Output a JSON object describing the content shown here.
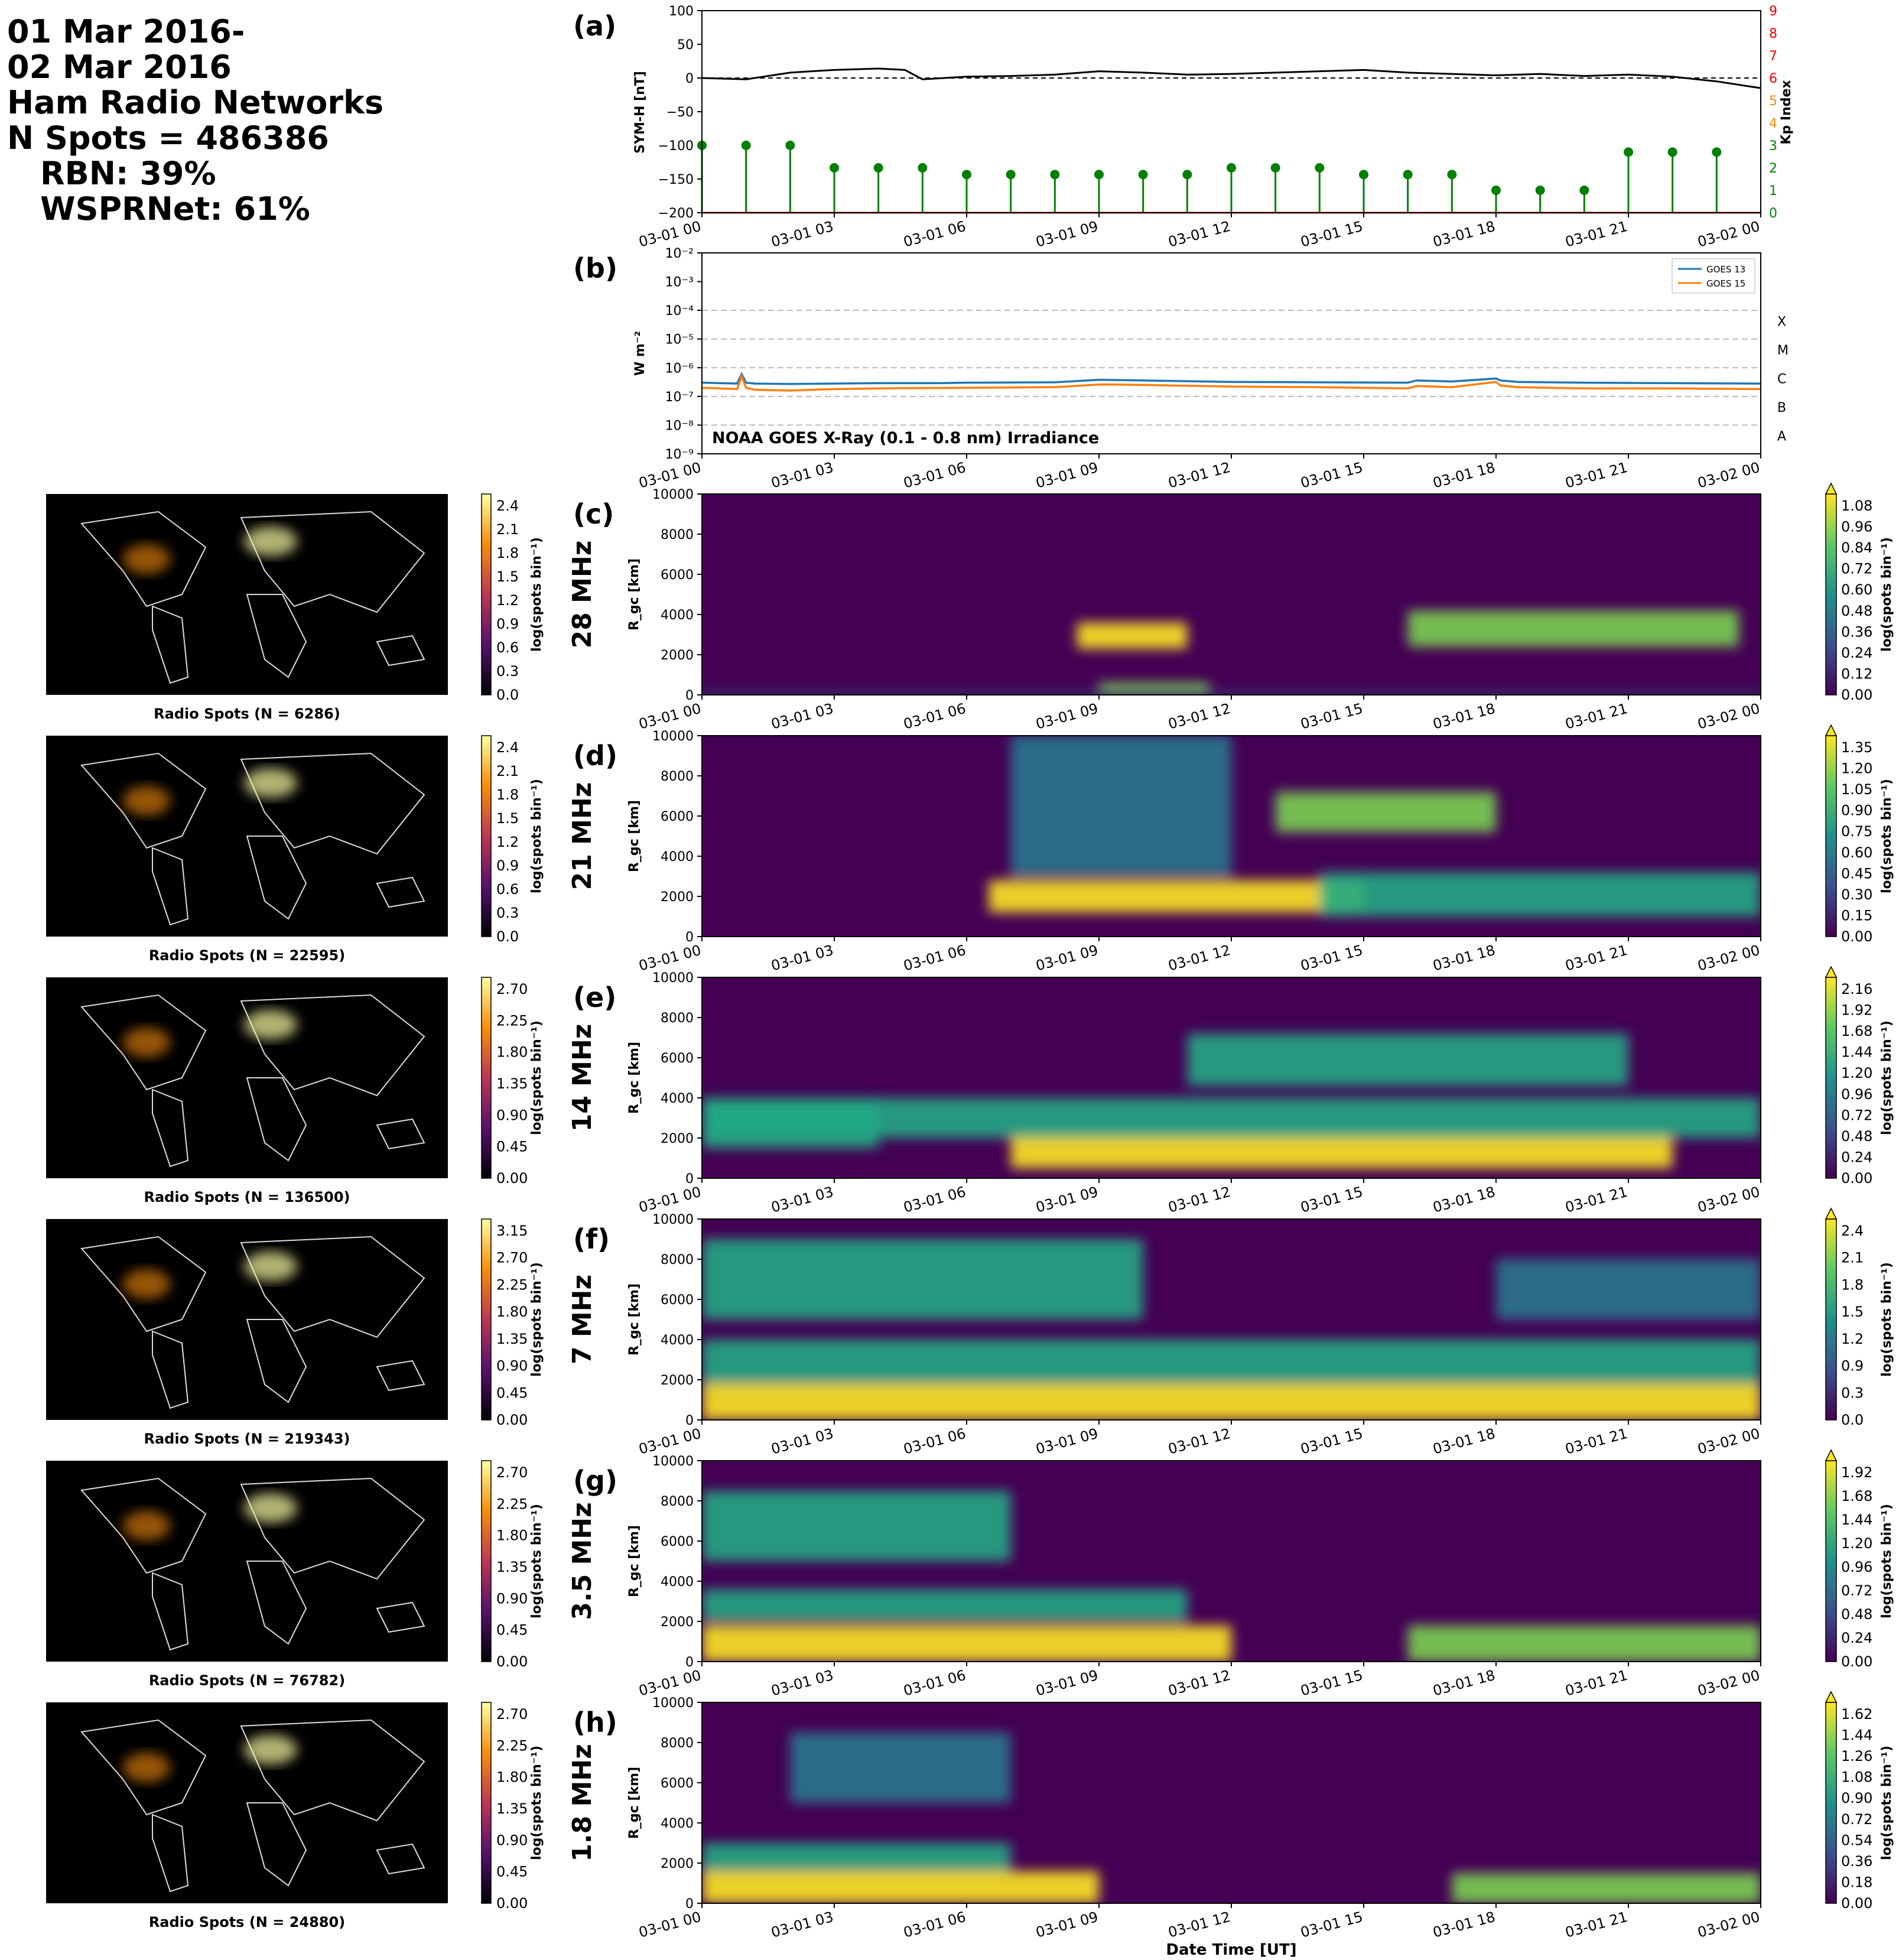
{
  "header": {
    "line1": "01 Mar 2016-",
    "line2": "02 Mar 2016",
    "line3": "Ham Radio Networks",
    "line4": "N Spots = 486386",
    "line5": "RBN: 39%",
    "line6": "WSPRNet: 61%"
  },
  "time_ticks": [
    "03-01 00",
    "03-01 03",
    "03-01 06",
    "03-01 09",
    "03-01 12",
    "03-01 15",
    "03-01 18",
    "03-01 21",
    "03-02 00"
  ],
  "xlabel_bottom": "Date Time [UT]",
  "colors": {
    "symh": "#000000",
    "kp": "#008000",
    "kp_axis": "#ff0000",
    "goes13": "#1f77b4",
    "goes15": "#ff7f0e"
  },
  "chart_data": [
    {
      "panel": "(a)",
      "type": "line",
      "ylabel": "SYM-H [nT]",
      "ylabel_right": "Kp Index",
      "ylim": [
        -200,
        100
      ],
      "yticks": [
        "100",
        "50",
        "0",
        "−50",
        "−100",
        "−150",
        "−200"
      ],
      "ylim_right": [
        0,
        9
      ],
      "yticks_right": [
        "9",
        "8",
        "7",
        "6",
        "5",
        "4",
        "3",
        "2",
        "1",
        "0"
      ],
      "symh": {
        "x_hours": [
          0,
          1,
          2,
          3,
          4,
          4.6,
          5,
          6,
          7,
          8,
          9,
          10,
          11,
          12,
          13,
          14,
          15,
          16,
          17,
          18,
          19,
          20,
          21,
          22,
          23,
          24
        ],
        "values": [
          0,
          -2,
          8,
          12,
          14,
          12,
          -2,
          2,
          3,
          5,
          10,
          8,
          5,
          6,
          8,
          10,
          12,
          8,
          6,
          4,
          6,
          3,
          5,
          2,
          -5,
          -15
        ]
      },
      "kp": {
        "x_hours": [
          0,
          1,
          2,
          3,
          4,
          5,
          6,
          7,
          8,
          9,
          10,
          11,
          12,
          13,
          14,
          15,
          16,
          17,
          18,
          19,
          20,
          21,
          22,
          23
        ],
        "values": [
          3,
          3,
          3,
          2,
          2,
          2,
          1.7,
          1.7,
          1.7,
          1.7,
          1.7,
          1.7,
          2,
          2,
          2,
          1.7,
          1.7,
          1.7,
          1,
          1,
          1,
          2.7,
          2.7,
          2.7
        ]
      }
    },
    {
      "panel": "(b)",
      "type": "line",
      "scale": "log",
      "ylabel": "W m⁻²",
      "ylim": [
        1e-09,
        0.01
      ],
      "yticks": [
        "10⁻²",
        "10⁻³",
        "10⁻⁴",
        "10⁻⁵",
        "10⁻⁶",
        "10⁻⁷",
        "10⁻⁸",
        "10⁻⁹"
      ],
      "class_labels": [
        "X",
        "M",
        "C",
        "B",
        "A"
      ],
      "annotation": "NOAA GOES X-Ray (0.1 - 0.8 nm) Irradiance",
      "legend_position": "top-right",
      "series": [
        {
          "name": "GOES 13",
          "x_hours": [
            0,
            0.8,
            0.9,
            1.0,
            1.2,
            2,
            3,
            4,
            4.8,
            5.4,
            6,
            8,
            9,
            10,
            12,
            14,
            16,
            16.2,
            17,
            18,
            18.1,
            18.5,
            20,
            22,
            24
          ],
          "values": [
            3e-07,
            2.8e-07,
            6e-07,
            3e-07,
            2.8e-07,
            2.7e-07,
            2.8e-07,
            2.9e-07,
            2.9e-07,
            2.9e-07,
            3e-07,
            3.1e-07,
            3.8e-07,
            3.6e-07,
            3.2e-07,
            3.1e-07,
            3e-07,
            3.6e-07,
            3.3e-07,
            4.2e-07,
            3.6e-07,
            3.2e-07,
            3e-07,
            2.9e-07,
            2.8e-07
          ]
        },
        {
          "name": "GOES 15",
          "x_hours": [
            0,
            0.8,
            0.9,
            1.0,
            1.2,
            2,
            3,
            4,
            6,
            8,
            9,
            9.4,
            10,
            12,
            14,
            16,
            16.2,
            17,
            18,
            18.1,
            18.5,
            20,
            22,
            24
          ],
          "values": [
            2e-07,
            1.8e-07,
            5e-07,
            2e-07,
            1.7e-07,
            1.6e-07,
            1.8e-07,
            1.9e-07,
            2e-07,
            2.1e-07,
            2.6e-07,
            2.6e-07,
            2.5e-07,
            2.2e-07,
            2.1e-07,
            1.9e-07,
            2.3e-07,
            2.1e-07,
            3.2e-07,
            2.4e-07,
            2.1e-07,
            1.9e-07,
            1.9e-07,
            1.8e-07
          ]
        }
      ]
    },
    {
      "panel": "(c)",
      "band": "28 MHz",
      "type": "heatmap",
      "map_title": "Radio Spots (N = 6286)",
      "map_cbar_ticks": [
        "2.4",
        "2.1",
        "1.8",
        "1.5",
        "1.2",
        "0.9",
        "0.6",
        "0.3",
        "0.0"
      ],
      "cbar_ticks": [
        "1.08",
        "0.96",
        "0.84",
        "0.72",
        "0.60",
        "0.48",
        "0.36",
        "0.24",
        "0.12",
        "0.00"
      ],
      "vmax": 1.08,
      "blobs": [
        {
          "t": [
            9,
            11.5
          ],
          "r": [
            0,
            600
          ],
          "v": 0.9
        },
        {
          "t": [
            8.5,
            11
          ],
          "r": [
            2300,
            3600
          ],
          "v": 1.0
        },
        {
          "t": [
            16,
            23.5
          ],
          "r": [
            2400,
            4200
          ],
          "v": 0.9
        },
        {
          "t": [
            0,
            24
          ],
          "r": [
            0,
            150
          ],
          "v": 0.3
        }
      ]
    },
    {
      "panel": "(d)",
      "band": "21 MHz",
      "type": "heatmap",
      "map_title": "Radio Spots (N = 22595)",
      "map_cbar_ticks": [
        "2.4",
        "2.1",
        "1.8",
        "1.5",
        "1.2",
        "0.9",
        "0.6",
        "0.3",
        "0.0"
      ],
      "cbar_ticks": [
        "1.35",
        "1.20",
        "1.05",
        "0.90",
        "0.75",
        "0.60",
        "0.45",
        "0.30",
        "0.15",
        "0.00"
      ],
      "vmax": 1.35,
      "blobs": [
        {
          "t": [
            6.5,
            15
          ],
          "r": [
            1200,
            2800
          ],
          "v": 1.3
        },
        {
          "t": [
            13,
            18
          ],
          "r": [
            5200,
            7200
          ],
          "v": 1.1
        },
        {
          "t": [
            7,
            12
          ],
          "r": [
            3000,
            10000
          ],
          "v": 0.6
        },
        {
          "t": [
            14,
            24
          ],
          "r": [
            1000,
            3200
          ],
          "v": 0.7
        }
      ]
    },
    {
      "panel": "(e)",
      "band": "14 MHz",
      "type": "heatmap",
      "map_title": "Radio Spots (N = 136500)",
      "map_cbar_ticks": [
        "2.70",
        "2.25",
        "1.80",
        "1.35",
        "0.90",
        "0.45",
        "0.00"
      ],
      "cbar_ticks": [
        "2.16",
        "1.92",
        "1.68",
        "1.44",
        "1.20",
        "0.96",
        "0.72",
        "0.48",
        "0.24",
        "0.00"
      ],
      "vmax": 2.16,
      "blobs": [
        {
          "t": [
            7,
            22
          ],
          "r": [
            500,
            2200
          ],
          "v": 2.1
        },
        {
          "t": [
            11,
            21
          ],
          "r": [
            4600,
            7200
          ],
          "v": 1.4
        },
        {
          "t": [
            0,
            4
          ],
          "r": [
            1500,
            4000
          ],
          "v": 1.2
        },
        {
          "t": [
            0,
            24
          ],
          "r": [
            2000,
            4000
          ],
          "v": 1.0
        }
      ]
    },
    {
      "panel": "(f)",
      "band": "7 MHz",
      "type": "heatmap",
      "map_title": "Radio Spots (N = 219343)",
      "map_cbar_ticks": [
        "3.15",
        "2.70",
        "2.25",
        "1.80",
        "1.35",
        "0.90",
        "0.45",
        "0.00"
      ],
      "cbar_ticks": [
        "2.4",
        "2.1",
        "1.8",
        "1.5",
        "1.2",
        "0.9",
        "0.3",
        "0.0"
      ],
      "vmax": 2.4,
      "blobs": [
        {
          "t": [
            0,
            24
          ],
          "r": [
            0,
            1800
          ],
          "v": 2.2
        },
        {
          "t": [
            0,
            24
          ],
          "r": [
            1800,
            4000
          ],
          "v": 1.4
        },
        {
          "t": [
            0,
            10
          ],
          "r": [
            5000,
            9000
          ],
          "v": 1.1
        },
        {
          "t": [
            18,
            24
          ],
          "r": [
            5000,
            8000
          ],
          "v": 1.0
        }
      ]
    },
    {
      "panel": "(g)",
      "band": "3.5 MHz",
      "type": "heatmap",
      "map_title": "Radio Spots (N = 76782)",
      "map_cbar_ticks": [
        "2.70",
        "2.25",
        "1.80",
        "1.35",
        "0.90",
        "0.45",
        "0.00"
      ],
      "cbar_ticks": [
        "1.92",
        "1.68",
        "1.44",
        "1.20",
        "0.96",
        "0.72",
        "0.48",
        "0.24",
        "0.00"
      ],
      "vmax": 1.92,
      "blobs": [
        {
          "t": [
            0,
            12
          ],
          "r": [
            0,
            1800
          ],
          "v": 1.8
        },
        {
          "t": [
            16,
            24
          ],
          "r": [
            0,
            1800
          ],
          "v": 1.6
        },
        {
          "t": [
            0,
            11
          ],
          "r": [
            2000,
            3600
          ],
          "v": 1.0
        },
        {
          "t": [
            0,
            7
          ],
          "r": [
            5000,
            8500
          ],
          "v": 1.0
        }
      ]
    },
    {
      "panel": "(h)",
      "band": "1.8 MHz",
      "type": "heatmap",
      "map_title": "Radio Spots (N = 24880)",
      "map_cbar_ticks": [
        "2.70",
        "2.25",
        "1.80",
        "1.35",
        "0.90",
        "0.45",
        "0.00"
      ],
      "cbar_ticks": [
        "1.62",
        "1.44",
        "1.26",
        "1.08",
        "0.90",
        "0.72",
        "0.54",
        "0.36",
        "0.18",
        "0.00"
      ],
      "vmax": 1.62,
      "blobs": [
        {
          "t": [
            0,
            9
          ],
          "r": [
            0,
            1600
          ],
          "v": 1.5
        },
        {
          "t": [
            17,
            24
          ],
          "r": [
            0,
            1500
          ],
          "v": 1.2
        },
        {
          "t": [
            0,
            7
          ],
          "r": [
            1600,
            3000
          ],
          "v": 0.8
        },
        {
          "t": [
            2,
            7
          ],
          "r": [
            5000,
            8500
          ],
          "v": 0.6
        }
      ]
    }
  ],
  "heatmap_common": {
    "ylabel": "R_gc [km]",
    "ylim": [
      0,
      10000
    ],
    "yticks": [
      "10000",
      "8000",
      "6000",
      "4000",
      "2000",
      "0"
    ],
    "cbar_label": "log(spots bin⁻¹)"
  }
}
